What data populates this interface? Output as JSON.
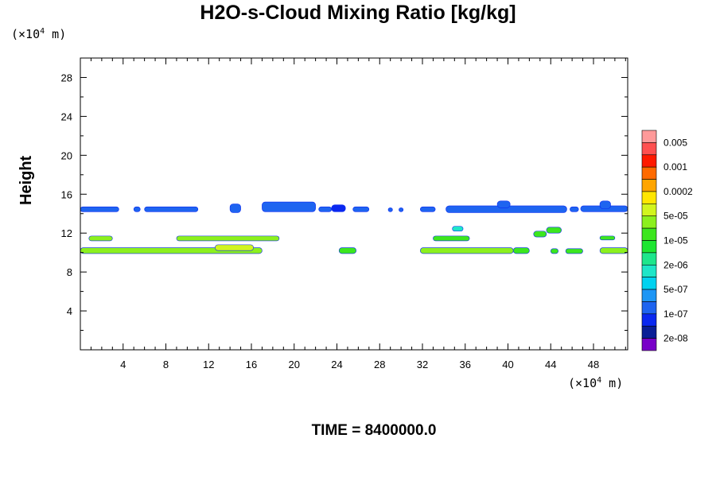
{
  "chart_data": {
    "type": "contour",
    "title": "H2O-s-Cloud Mixing Ratio [kg/kg]",
    "xlabel": "",
    "ylabel": "Height",
    "x_unit_prefix": "(×10",
    "x_unit_exp": "4",
    "x_unit_suffix": " m)",
    "y_unit_prefix": "(×10",
    "y_unit_exp": "4",
    "y_unit_suffix": " m)",
    "footer": "TIME = 8400000.0",
    "xlim": [
      0,
      51.2
    ],
    "ylim": [
      0,
      30
    ],
    "x_ticks": [
      4,
      8,
      12,
      16,
      20,
      24,
      28,
      32,
      36,
      40,
      44,
      48
    ],
    "y_ticks": [
      4,
      8,
      12,
      16,
      20,
      24,
      28
    ],
    "colorbar": {
      "labels": [
        "0.005",
        "0.001",
        "0.0002",
        "5e-05",
        "1e-05",
        "2e-06",
        "5e-07",
        "1e-07",
        "2e-08"
      ],
      "colors": [
        "#ff9a9a",
        "#ff5050",
        "#ff1a00",
        "#ff6a00",
        "#ffa500",
        "#ffe600",
        "#d2f51e",
        "#8cf01e",
        "#3ce61e",
        "#1ee632",
        "#1ee68c",
        "#1ee6c8",
        "#00d2f0",
        "#1e96f5",
        "#1e64f0",
        "#0a28f0",
        "#0a1e96",
        "#7800c8"
      ]
    },
    "cloud_bands": [
      {
        "x": [
          0.0,
          3.6
        ],
        "y": [
          14.2,
          14.7
        ],
        "color": "#1e64f0"
      },
      {
        "x": [
          5.0,
          5.6
        ],
        "y": [
          14.2,
          14.7
        ],
        "color": "#1e64f0"
      },
      {
        "x": [
          6.0,
          11.0
        ],
        "y": [
          14.2,
          14.7
        ],
        "color": "#1e64f0"
      },
      {
        "x": [
          14.0,
          15.0
        ],
        "y": [
          14.1,
          15.0
        ],
        "color": "#1e64f0"
      },
      {
        "x": [
          17.0,
          22.0
        ],
        "y": [
          14.2,
          15.2
        ],
        "color": "#1e64f0"
      },
      {
        "x": [
          22.3,
          23.5
        ],
        "y": [
          14.2,
          14.7
        ],
        "color": "#1e64f0"
      },
      {
        "x": [
          23.5,
          24.8
        ],
        "y": [
          14.2,
          14.9
        ],
        "color": "#0a28f0"
      },
      {
        "x": [
          25.5,
          27.0
        ],
        "y": [
          14.2,
          14.7
        ],
        "color": "#1e64f0"
      },
      {
        "x": [
          28.8,
          29.2
        ],
        "y": [
          14.2,
          14.6
        ],
        "color": "#1e64f0"
      },
      {
        "x": [
          29.8,
          30.2
        ],
        "y": [
          14.2,
          14.6
        ],
        "color": "#1e64f0"
      },
      {
        "x": [
          31.8,
          33.2
        ],
        "y": [
          14.2,
          14.7
        ],
        "color": "#1e64f0"
      },
      {
        "x": [
          34.2,
          45.5
        ],
        "y": [
          14.1,
          14.8
        ],
        "color": "#1e64f0"
      },
      {
        "x": [
          39.0,
          40.2
        ],
        "y": [
          14.6,
          15.3
        ],
        "color": "#1e64f0"
      },
      {
        "x": [
          45.8,
          46.6
        ],
        "y": [
          14.2,
          14.7
        ],
        "color": "#1e64f0"
      },
      {
        "x": [
          46.8,
          51.2
        ],
        "y": [
          14.2,
          14.8
        ],
        "color": "#1e64f0"
      },
      {
        "x": [
          48.6,
          49.6
        ],
        "y": [
          14.5,
          15.3
        ],
        "color": "#1e64f0"
      },
      {
        "x": [
          0.8,
          3.0
        ],
        "y": [
          11.2,
          11.7
        ],
        "color": "#8cf01e"
      },
      {
        "x": [
          9.0,
          18.6
        ],
        "y": [
          11.2,
          11.7
        ],
        "color": "#8cf01e"
      },
      {
        "x": [
          0.0,
          17.0
        ],
        "y": [
          9.9,
          10.5
        ],
        "color": "#8cf01e"
      },
      {
        "x": [
          12.6,
          16.2
        ],
        "y": [
          10.2,
          10.8
        ],
        "color": "#d2f51e"
      },
      {
        "x": [
          24.2,
          25.8
        ],
        "y": [
          9.9,
          10.5
        ],
        "color": "#3ce61e"
      },
      {
        "x": [
          31.8,
          40.5
        ],
        "y": [
          9.9,
          10.5
        ],
        "color": "#8cf01e"
      },
      {
        "x": [
          40.5,
          42.0
        ],
        "y": [
          9.9,
          10.5
        ],
        "color": "#3ce61e"
      },
      {
        "x": [
          33.0,
          36.4
        ],
        "y": [
          11.2,
          11.7
        ],
        "color": "#3ce61e"
      },
      {
        "x": [
          34.8,
          35.8
        ],
        "y": [
          12.2,
          12.7
        ],
        "color": "#1ee6c8"
      },
      {
        "x": [
          42.4,
          43.6
        ],
        "y": [
          11.6,
          12.2
        ],
        "color": "#3ce61e"
      },
      {
        "x": [
          43.6,
          45.0
        ],
        "y": [
          12.0,
          12.6
        ],
        "color": "#3ce61e"
      },
      {
        "x": [
          44.0,
          44.7
        ],
        "y": [
          9.9,
          10.4
        ],
        "color": "#3ce61e"
      },
      {
        "x": [
          45.4,
          47.0
        ],
        "y": [
          9.9,
          10.4
        ],
        "color": "#3ce61e"
      },
      {
        "x": [
          48.6,
          51.2
        ],
        "y": [
          9.9,
          10.5
        ],
        "color": "#8cf01e"
      },
      {
        "x": [
          48.6,
          50.0
        ],
        "y": [
          11.3,
          11.7
        ],
        "color": "#3ce61e"
      }
    ]
  }
}
